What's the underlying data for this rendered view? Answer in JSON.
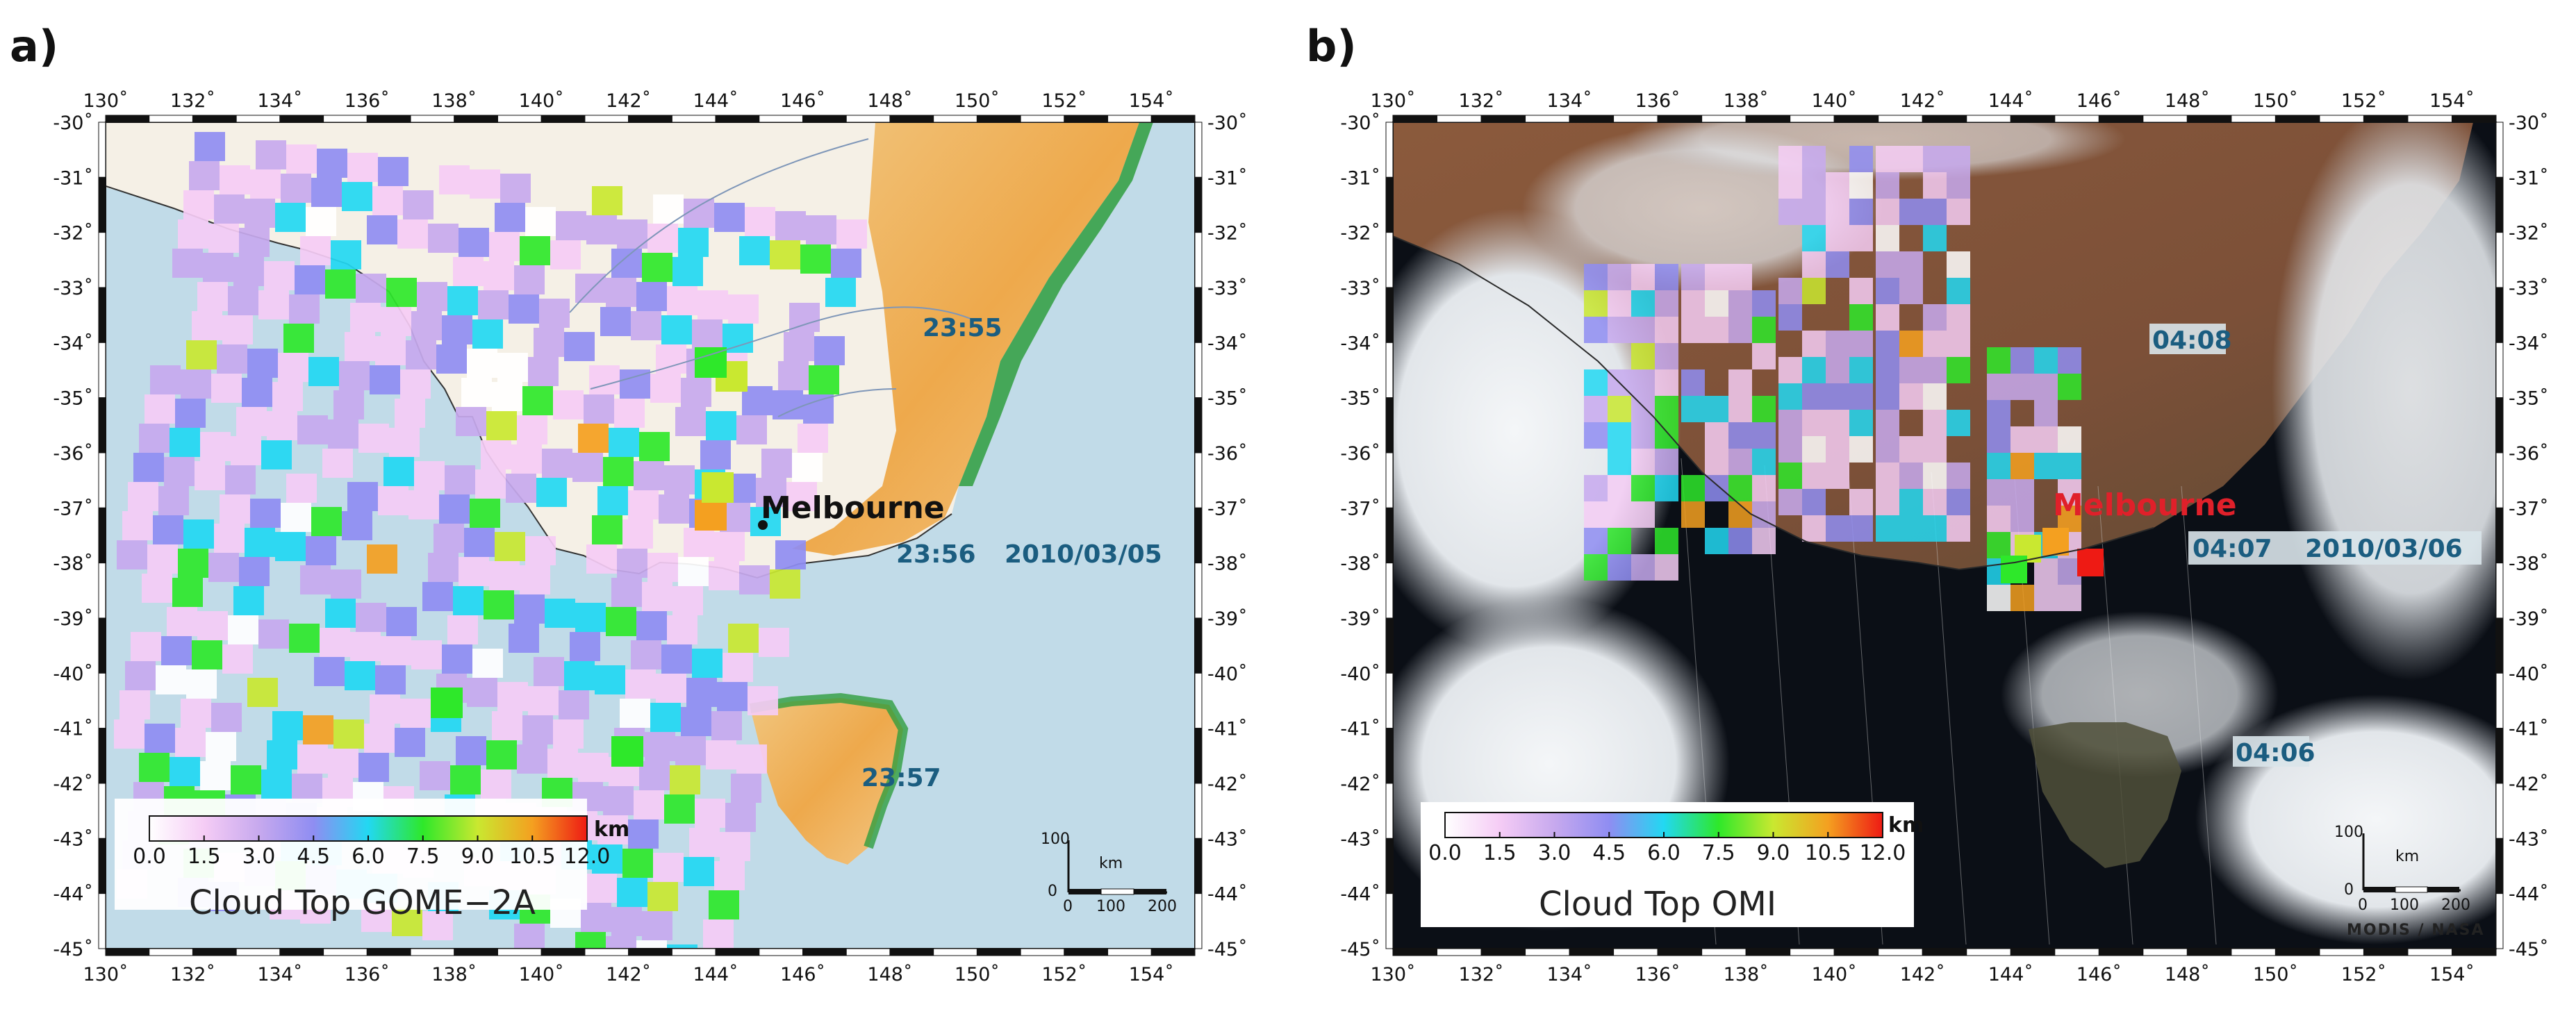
{
  "colorbar": {
    "ticks": [
      "0.0",
      "1.5",
      "3.0",
      "4.5",
      "6.0",
      "7.5",
      "9.0",
      "10.5",
      "12.0"
    ],
    "unit": "km",
    "stops": [
      "#ffffff",
      "#f5ccf5",
      "#c7a9ee",
      "#8f8df2",
      "#22d8f2",
      "#2ee82a",
      "#c9e830",
      "#f4a020",
      "#ee1a14"
    ]
  },
  "axes": {
    "lon_labels": [
      "130˚",
      "132˚",
      "134˚",
      "136˚",
      "138˚",
      "140˚",
      "142˚",
      "144˚",
      "146˚",
      "148˚",
      "150˚",
      "152˚",
      "154˚"
    ],
    "lat_labels": [
      "-30˚",
      "-31˚",
      "-32˚",
      "-33˚",
      "-34˚",
      "-35˚",
      "-36˚",
      "-37˚",
      "-38˚",
      "-39˚",
      "-40˚",
      "-41˚",
      "-42˚",
      "-43˚",
      "-44˚",
      "-45˚"
    ]
  },
  "panel_a": {
    "letter": "a)",
    "title": "Cloud Top GOME−2A",
    "city": "Melbourne",
    "times": [
      "23:55",
      "23:56",
      "23:57"
    ],
    "date": "2010/03/05",
    "scalebar": {
      "vertical": "100",
      "zero": "0",
      "ticks": [
        "0",
        "100",
        "200"
      ],
      "unit": "km"
    }
  },
  "panel_b": {
    "letter": "b)",
    "title": "Cloud Top OMI",
    "city": "Melbourne",
    "times": [
      "04:08",
      "04:07",
      "04:06"
    ],
    "date": "2010/03/06",
    "scalebar": {
      "vertical": "100",
      "zero": "0",
      "ticks": [
        "0",
        "100",
        "200"
      ],
      "unit": "km"
    },
    "credit": "MODIS / NASA"
  }
}
